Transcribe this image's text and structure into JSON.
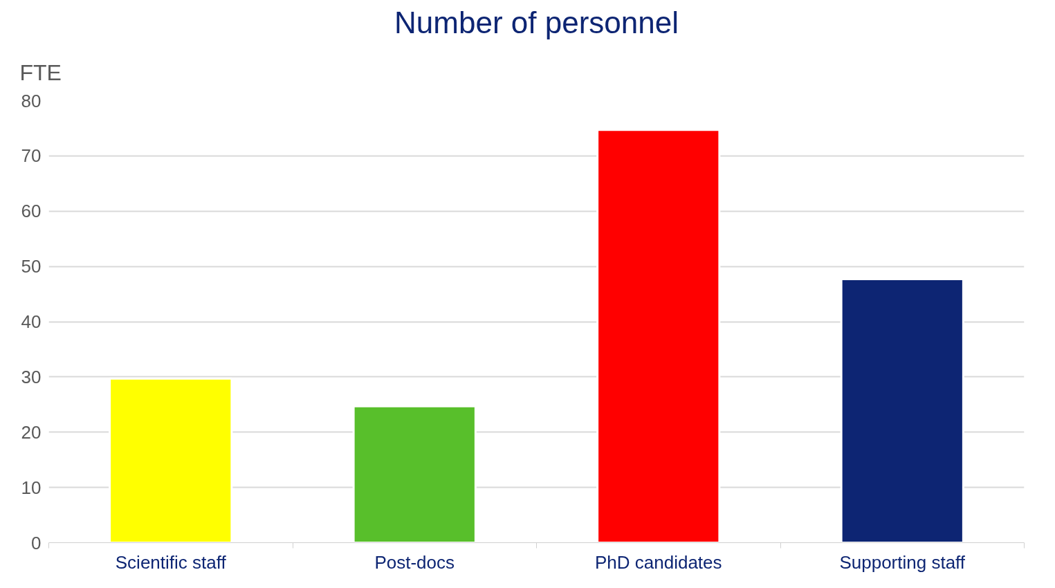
{
  "chart_data": {
    "type": "bar",
    "title": "Number of personnel",
    "ylabel": "FTE",
    "categories": [
      "Scientific staff",
      "Post-docs",
      "PhD candidates",
      "Supporting staff"
    ],
    "values": [
      29.7,
      24.7,
      74.7,
      47.7
    ],
    "colors": [
      "#ffff00",
      "#58bf2b",
      "#ff0000",
      "#0d2573"
    ],
    "ylim": [
      0,
      80
    ],
    "yticks": [
      0,
      10,
      20,
      30,
      40,
      50,
      60,
      70,
      80
    ],
    "grid": "y"
  }
}
